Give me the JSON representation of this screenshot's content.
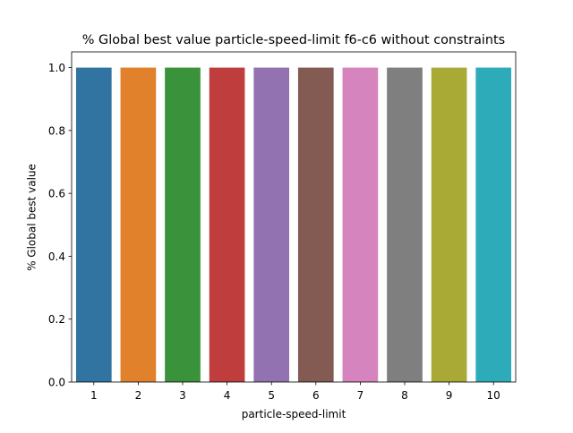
{
  "chart_data": {
    "type": "bar",
    "title": "% Global best value particle-speed-limit f6-c6 without constraints",
    "xlabel": "particle-speed-limit",
    "ylabel": "% Global best value",
    "categories": [
      "1",
      "2",
      "3",
      "4",
      "5",
      "6",
      "7",
      "8",
      "9",
      "10"
    ],
    "values": [
      1.0,
      1.0,
      1.0,
      1.0,
      1.0,
      1.0,
      1.0,
      1.0,
      1.0,
      1.0
    ],
    "ylim": [
      0,
      1.05
    ],
    "yticks": [
      0.0,
      0.2,
      0.4,
      0.6,
      0.8,
      1.0
    ],
    "ytick_labels": [
      "0.0",
      "0.2",
      "0.4",
      "0.6",
      "0.8",
      "1.0"
    ],
    "grid": false,
    "legend": "none",
    "colors": [
      "#3274a1",
      "#e1812c",
      "#3a923a",
      "#c03d3e",
      "#9372b2",
      "#845b53",
      "#d684bd",
      "#7f7f7f",
      "#a9aa35",
      "#2eabb8"
    ]
  }
}
